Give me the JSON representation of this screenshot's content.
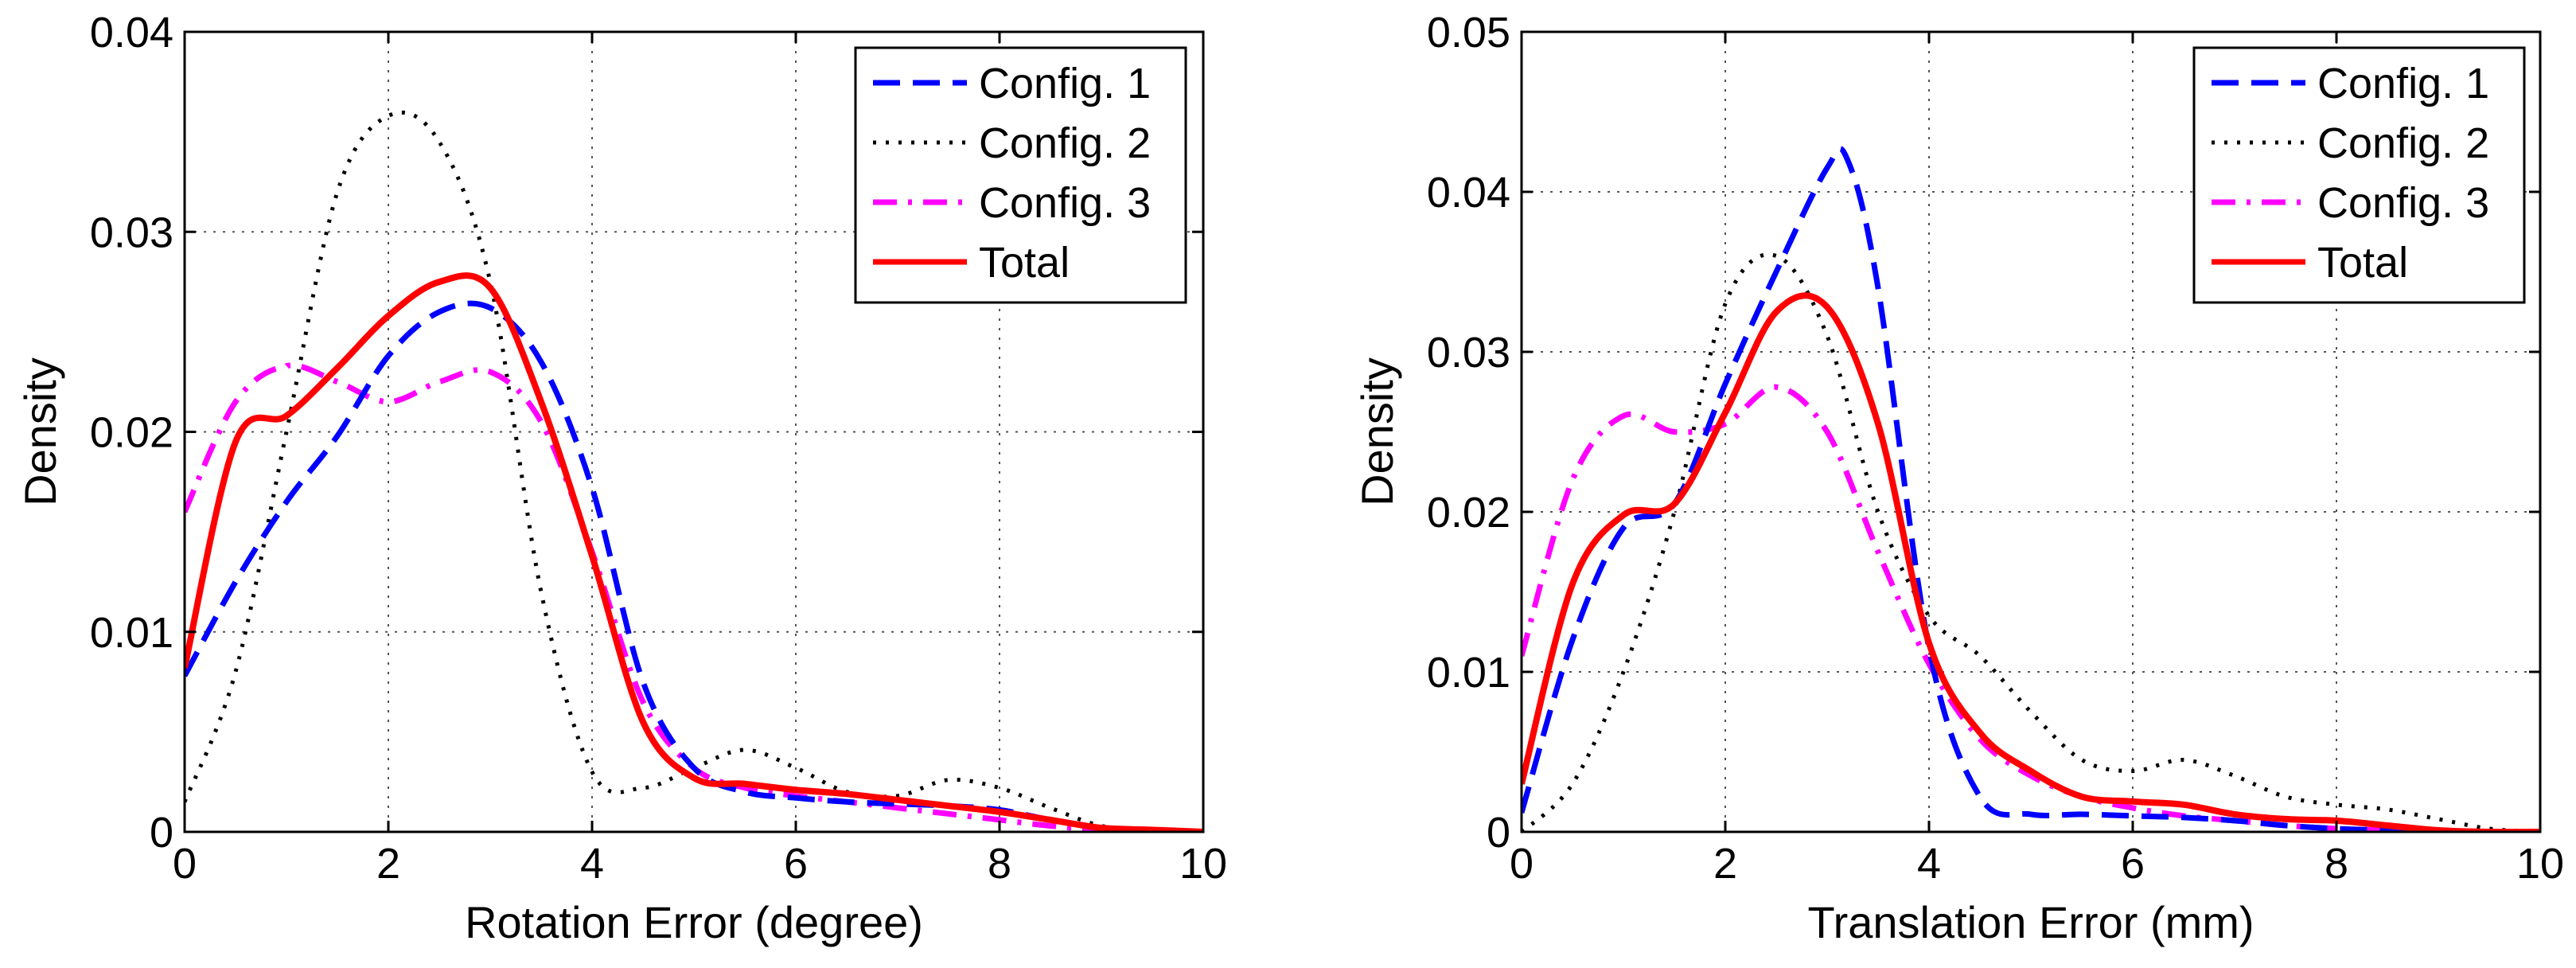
{
  "chart_data": [
    {
      "type": "line",
      "title": "",
      "xlabel": "Rotation Error (degree)",
      "ylabel": "Density",
      "xlim": [
        0,
        10
      ],
      "ylim": [
        0,
        0.04
      ],
      "xticks": [
        0,
        2,
        4,
        6,
        8,
        10
      ],
      "yticks": [
        0,
        0.01,
        0.02,
        0.03,
        0.04
      ],
      "xtick_labels": [
        "0",
        "2",
        "4",
        "6",
        "8",
        "10"
      ],
      "ytick_labels": [
        "0",
        "0.01",
        "0.02",
        "0.03",
        "0.04"
      ],
      "grid": true,
      "legend_position": "top-right",
      "series": [
        {
          "name": "Config. 1",
          "color": "#0000ff",
          "style": "dashed",
          "x": [
            0,
            0.5,
            1,
            1.5,
            2,
            2.5,
            3,
            3.5,
            4,
            4.5,
            5,
            5.5,
            6,
            6.5,
            7,
            7.5,
            8,
            8.5,
            9,
            9.5,
            10
          ],
          "y": [
            0.0078,
            0.0125,
            0.0165,
            0.0198,
            0.0238,
            0.026,
            0.0262,
            0.0235,
            0.0172,
            0.0075,
            0.0032,
            0.002,
            0.0017,
            0.0015,
            0.0014,
            0.0013,
            0.0011,
            0.0006,
            0.0002,
            0.0001,
            0
          ]
        },
        {
          "name": "Config. 2",
          "color": "#000000",
          "style": "dotted",
          "x": [
            0,
            0.5,
            1,
            1.5,
            2,
            2.5,
            3,
            3.5,
            4,
            4.5,
            5,
            5.5,
            6,
            6.5,
            7,
            7.5,
            8,
            8.5,
            9,
            9.5,
            10
          ],
          "y": [
            0.0015,
            0.008,
            0.02,
            0.032,
            0.0358,
            0.0345,
            0.0275,
            0.012,
            0.003,
            0.0022,
            0.0032,
            0.0041,
            0.0032,
            0.002,
            0.0018,
            0.0026,
            0.0022,
            0.0012,
            0.0003,
            0.0001,
            0
          ]
        },
        {
          "name": "Config. 3",
          "color": "#ff00ff",
          "style": "dashdot",
          "x": [
            0,
            0.5,
            1,
            1.5,
            2,
            2.5,
            3,
            3.5,
            4,
            4.5,
            5,
            5.5,
            6,
            6.5,
            7,
            7.5,
            8,
            8.5,
            9,
            9.5,
            10
          ],
          "y": [
            0.016,
            0.0215,
            0.0233,
            0.0225,
            0.0215,
            0.0225,
            0.023,
            0.0205,
            0.014,
            0.0065,
            0.0032,
            0.0022,
            0.0018,
            0.0015,
            0.0012,
            0.0009,
            0.0006,
            0.0003,
            0.0001,
            0,
            0
          ]
        },
        {
          "name": "Total",
          "color": "#ff0000",
          "style": "solid",
          "x": [
            0,
            0.5,
            1,
            1.5,
            2,
            2.5,
            3,
            3.5,
            4,
            4.5,
            5,
            5.5,
            6,
            6.5,
            7,
            7.5,
            8,
            8.5,
            9,
            9.5,
            10
          ],
          "y": [
            0.0082,
            0.0195,
            0.0208,
            0.0232,
            0.0258,
            0.0275,
            0.0272,
            0.0215,
            0.0138,
            0.0055,
            0.0027,
            0.0024,
            0.0021,
            0.0019,
            0.0016,
            0.0013,
            0.001,
            0.0006,
            0.0002,
            0.0001,
            0
          ]
        }
      ]
    },
    {
      "type": "line",
      "title": "",
      "xlabel": "Translation Error (mm)",
      "ylabel": "Density",
      "xlim": [
        0,
        10
      ],
      "ylim": [
        0,
        0.05
      ],
      "xticks": [
        0,
        2,
        4,
        6,
        8,
        10
      ],
      "yticks": [
        0,
        0.01,
        0.02,
        0.03,
        0.04,
        0.05
      ],
      "xtick_labels": [
        "0",
        "2",
        "4",
        "6",
        "8",
        "10"
      ],
      "ytick_labels": [
        "0",
        "0.01",
        "0.02",
        "0.03",
        "0.04",
        "0.05"
      ],
      "grid": true,
      "legend_position": "top-right",
      "series": [
        {
          "name": "Config. 1",
          "color": "#0000ff",
          "style": "dashed",
          "x": [
            0,
            0.5,
            1,
            1.5,
            2,
            2.5,
            3,
            3.2,
            3.5,
            4,
            4.5,
            5,
            5.5,
            6,
            6.5,
            7,
            7.5,
            8,
            8.5,
            9,
            9.5,
            10
          ],
          "y": [
            0.0012,
            0.012,
            0.019,
            0.0205,
            0.028,
            0.035,
            0.0415,
            0.042,
            0.034,
            0.0115,
            0.0022,
            0.0011,
            0.0011,
            0.001,
            0.0009,
            0.0007,
            0.0004,
            0.0002,
            0.0001,
            0,
            0,
            0
          ]
        },
        {
          "name": "Config. 2",
          "color": "#000000",
          "style": "dotted",
          "x": [
            0,
            0.5,
            1,
            1.5,
            2,
            2.5,
            3,
            3.5,
            4,
            4.5,
            5,
            5.5,
            6,
            6.5,
            7,
            7.5,
            8,
            8.5,
            9,
            9.5,
            10
          ],
          "y": [
            0,
            0.003,
            0.01,
            0.02,
            0.033,
            0.036,
            0.031,
            0.02,
            0.0135,
            0.011,
            0.0075,
            0.0045,
            0.0038,
            0.0045,
            0.0035,
            0.0022,
            0.0017,
            0.0014,
            0.0008,
            0.0002,
            0
          ]
        },
        {
          "name": "Config. 3",
          "color": "#ff00ff",
          "style": "dashdot",
          "x": [
            0,
            0.5,
            1,
            1.5,
            2,
            2.5,
            3,
            3.5,
            4,
            4.5,
            5,
            5.5,
            6,
            6.5,
            7,
            7.5,
            8,
            8.5,
            9,
            9.5,
            10
          ],
          "y": [
            0.011,
            0.022,
            0.026,
            0.025,
            0.0255,
            0.0278,
            0.025,
            0.0175,
            0.0105,
            0.0058,
            0.0035,
            0.0022,
            0.0015,
            0.001,
            0.0007,
            0.0004,
            0.0002,
            0.0001,
            0,
            0,
            0
          ]
        },
        {
          "name": "Total",
          "color": "#ff0000",
          "style": "solid",
          "x": [
            0,
            0.5,
            1,
            1.5,
            2,
            2.5,
            3,
            3.5,
            4,
            4.5,
            5,
            5.5,
            6,
            6.5,
            7,
            7.5,
            8,
            8.5,
            9,
            9.5,
            10
          ],
          "y": [
            0.003,
            0.0155,
            0.0198,
            0.0205,
            0.0262,
            0.0325,
            0.0328,
            0.0255,
            0.0118,
            0.0062,
            0.0038,
            0.0022,
            0.0019,
            0.0017,
            0.0011,
            0.0008,
            0.0007,
            0.0004,
            0.0001,
            0,
            0
          ]
        }
      ]
    }
  ]
}
